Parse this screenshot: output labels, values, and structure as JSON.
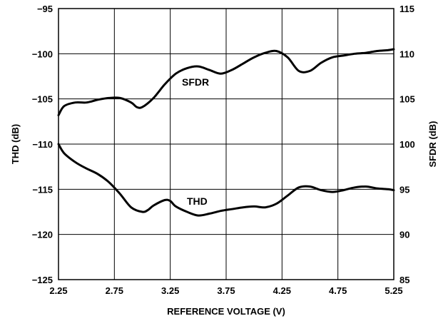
{
  "chart_data": {
    "type": "line",
    "xlabel": "REFERENCE VOLTAGE (V)",
    "ylabel_left": "THD (dB)",
    "ylabel_right": "SFDR (dB)",
    "xlim": [
      2.25,
      5.25
    ],
    "ylim_left": [
      -125,
      -95
    ],
    "ylim_right": [
      85,
      115
    ],
    "x_ticks": [
      "2.25",
      "2.75",
      "3.25",
      "3.75",
      "4.25",
      "4.75",
      "5.25"
    ],
    "y_left_ticks": [
      "−95",
      "−100",
      "−105",
      "−110",
      "−115",
      "−120",
      "−125"
    ],
    "y_right_ticks": [
      "115",
      "110",
      "105",
      "100",
      "95",
      "90",
      "85"
    ],
    "grid": true,
    "series": [
      {
        "name": "SFDR",
        "axis": "right",
        "x": [
          2.25,
          2.3,
          2.4,
          2.5,
          2.6,
          2.7,
          2.8,
          2.9,
          2.95,
          3.0,
          3.1,
          3.2,
          3.3,
          3.4,
          3.5,
          3.6,
          3.7,
          3.8,
          3.9,
          4.0,
          4.1,
          4.2,
          4.3,
          4.4,
          4.5,
          4.6,
          4.7,
          4.8,
          4.9,
          5.0,
          5.1,
          5.2,
          5.25
        ],
        "values": [
          103.2,
          104.2,
          104.6,
          104.6,
          104.9,
          105.1,
          105.1,
          104.6,
          104.1,
          104.1,
          105.1,
          106.6,
          107.8,
          108.4,
          108.6,
          108.2,
          107.8,
          108.2,
          108.9,
          109.6,
          110.1,
          110.3,
          109.6,
          108.1,
          108.1,
          109.0,
          109.6,
          109.8,
          110.0,
          110.1,
          110.3,
          110.4,
          110.5
        ]
      },
      {
        "name": "THD",
        "axis": "left",
        "x": [
          2.25,
          2.3,
          2.4,
          2.5,
          2.6,
          2.7,
          2.8,
          2.9,
          3.0,
          3.05,
          3.1,
          3.2,
          3.25,
          3.3,
          3.4,
          3.5,
          3.6,
          3.7,
          3.8,
          3.9,
          4.0,
          4.1,
          4.2,
          4.3,
          4.4,
          4.5,
          4.6,
          4.7,
          4.8,
          4.9,
          5.0,
          5.1,
          5.2,
          5.25
        ],
        "values": [
          -110.0,
          -111.0,
          -112.0,
          -112.7,
          -113.3,
          -114.2,
          -115.5,
          -117.0,
          -117.5,
          -117.3,
          -116.8,
          -116.2,
          -116.3,
          -116.9,
          -117.5,
          -117.9,
          -117.7,
          -117.4,
          -117.2,
          -117.0,
          -116.9,
          -117.0,
          -116.6,
          -115.7,
          -114.8,
          -114.7,
          -115.1,
          -115.3,
          -115.1,
          -114.8,
          -114.7,
          -114.9,
          -115.0,
          -115.1
        ]
      }
    ]
  }
}
